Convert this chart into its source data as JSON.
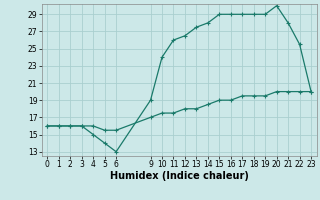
{
  "title": "",
  "xlabel": "Humidex (Indice chaleur)",
  "bg_color": "#cce8e8",
  "grid_color": "#aacfcf",
  "line_color": "#1a7a6a",
  "xlim": [
    -0.5,
    23.5
  ],
  "ylim": [
    12.5,
    30.2
  ],
  "xticks": [
    0,
    1,
    2,
    3,
    4,
    5,
    6,
    9,
    10,
    11,
    12,
    13,
    14,
    15,
    16,
    17,
    18,
    19,
    20,
    21,
    22,
    23
  ],
  "yticks": [
    13,
    15,
    17,
    19,
    21,
    23,
    25,
    27,
    29
  ],
  "line1_x": [
    0,
    1,
    2,
    3,
    4,
    5,
    6,
    9,
    10,
    11,
    12,
    13,
    14,
    15,
    16,
    17,
    18,
    19,
    20,
    21,
    22,
    23
  ],
  "line1_y": [
    16,
    16,
    16,
    16,
    15,
    14,
    13,
    19,
    24,
    26,
    26.5,
    27.5,
    28,
    29,
    29,
    29,
    29,
    29,
    30,
    28,
    25.5,
    20
  ],
  "line2_x": [
    0,
    1,
    2,
    3,
    4,
    5,
    6,
    9,
    10,
    11,
    12,
    13,
    14,
    15,
    16,
    17,
    18,
    19,
    20,
    21,
    22,
    23
  ],
  "line2_y": [
    16,
    16,
    16,
    16,
    16,
    15.5,
    15.5,
    17,
    17.5,
    17.5,
    18,
    18,
    18.5,
    19,
    19,
    19.5,
    19.5,
    19.5,
    20,
    20,
    20,
    20
  ],
  "xlabel_fontsize": 7,
  "tick_fontsize": 5.5,
  "linewidth": 0.9,
  "markersize": 3.5
}
